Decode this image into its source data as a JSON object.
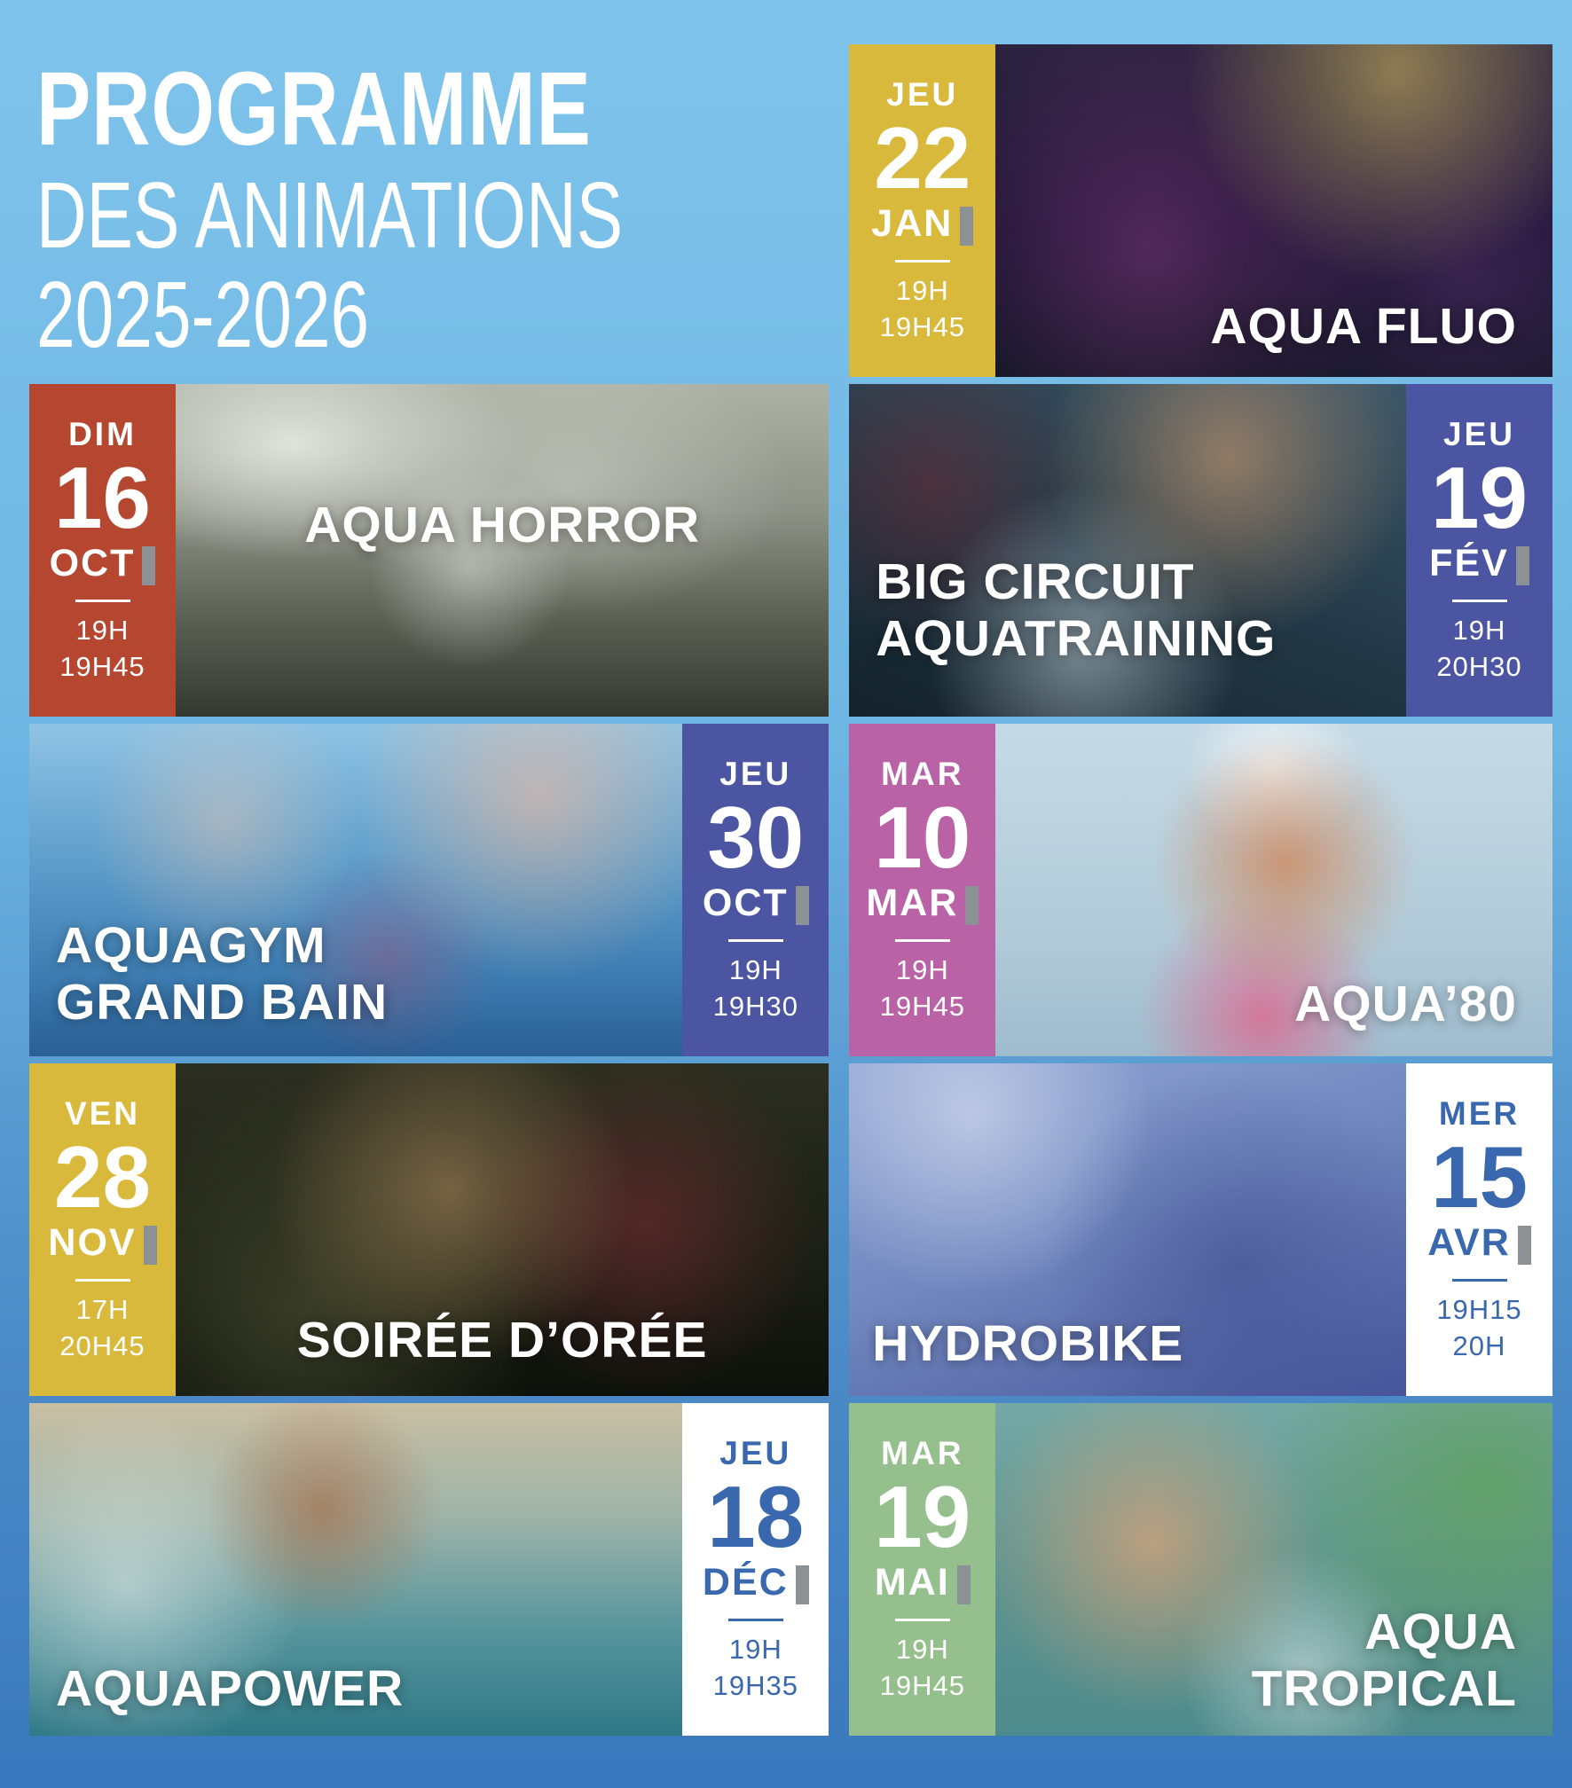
{
  "poster": {
    "title_line1": "PROGRAMME",
    "title_line2": "DES ANIMATIONS",
    "title_line3": "2025-2026"
  },
  "colors": {
    "background_top": "#7EC3EB",
    "background_bottom": "#3A78BD",
    "yellow": "#D9B93C",
    "red": "#B5462F",
    "indigo": "#4B55A1",
    "pink": "#B963A6",
    "green": "#95BF8D",
    "white_block_text": "#3A68AE",
    "month_tick_gray": "#8C9196",
    "text_white": "#FFFFFF"
  },
  "events": [
    {
      "id": "aqua-fluo",
      "day": "JEU",
      "date": "22",
      "month": "JAN",
      "time_start": "19H",
      "time_end": "19H45",
      "name_line1": "AQUA FLUO",
      "name_line2": "",
      "accent": "#D9B93C",
      "accent_text": "#FFFFFF"
    },
    {
      "id": "aqua-horror",
      "day": "DIM",
      "date": "16",
      "month": "OCT",
      "time_start": "19H",
      "time_end": "19H45",
      "name_line1": "AQUA HORROR",
      "name_line2": "",
      "accent": "#B5462F",
      "accent_text": "#FFFFFF"
    },
    {
      "id": "big-circuit-aquatraining",
      "day": "JEU",
      "date": "19",
      "month": "FÉV",
      "time_start": "19H",
      "time_end": "20H30",
      "name_line1": "BIG CIRCUIT",
      "name_line2": "AQUATRAINING",
      "accent": "#4B55A1",
      "accent_text": "#FFFFFF"
    },
    {
      "id": "aquagym-grand-bain",
      "day": "JEU",
      "date": "30",
      "month": "OCT",
      "time_start": "19H",
      "time_end": "19H30",
      "name_line1": "AQUAGYM",
      "name_line2": "GRAND BAIN",
      "accent": "#4B55A1",
      "accent_text": "#FFFFFF"
    },
    {
      "id": "aqua-80",
      "day": "MAR",
      "date": "10",
      "month": "MAR",
      "time_start": "19H",
      "time_end": "19H45",
      "name_line1": "AQUA’80",
      "name_line2": "",
      "accent": "#B963A6",
      "accent_text": "#FFFFFF"
    },
    {
      "id": "soiree-d-oree",
      "day": "VEN",
      "date": "28",
      "month": "NOV",
      "time_start": "17H",
      "time_end": "20H45",
      "name_line1": "SOIRÉE D’ORÉE",
      "name_line2": "",
      "accent": "#D9B93C",
      "accent_text": "#FFFFFF"
    },
    {
      "id": "hydrobike",
      "day": "MER",
      "date": "15",
      "month": "AVR",
      "time_start": "19H15",
      "time_end": "20H",
      "name_line1": "HYDROBIKE",
      "name_line2": "",
      "accent": "#FFFFFF",
      "accent_text": "#3A68AE"
    },
    {
      "id": "aquapower",
      "day": "JEU",
      "date": "18",
      "month": "DÉC",
      "time_start": "19H",
      "time_end": "19H35",
      "name_line1": "AQUAPOWER",
      "name_line2": "",
      "accent": "#FFFFFF",
      "accent_text": "#3A68AE"
    },
    {
      "id": "aqua-tropical",
      "day": "MAR",
      "date": "19",
      "month": "MAI",
      "time_start": "19H",
      "time_end": "19H45",
      "name_line1": "AQUA",
      "name_line2": "TROPICAL",
      "accent": "#95BF8D",
      "accent_text": "#FFFFFF"
    }
  ]
}
